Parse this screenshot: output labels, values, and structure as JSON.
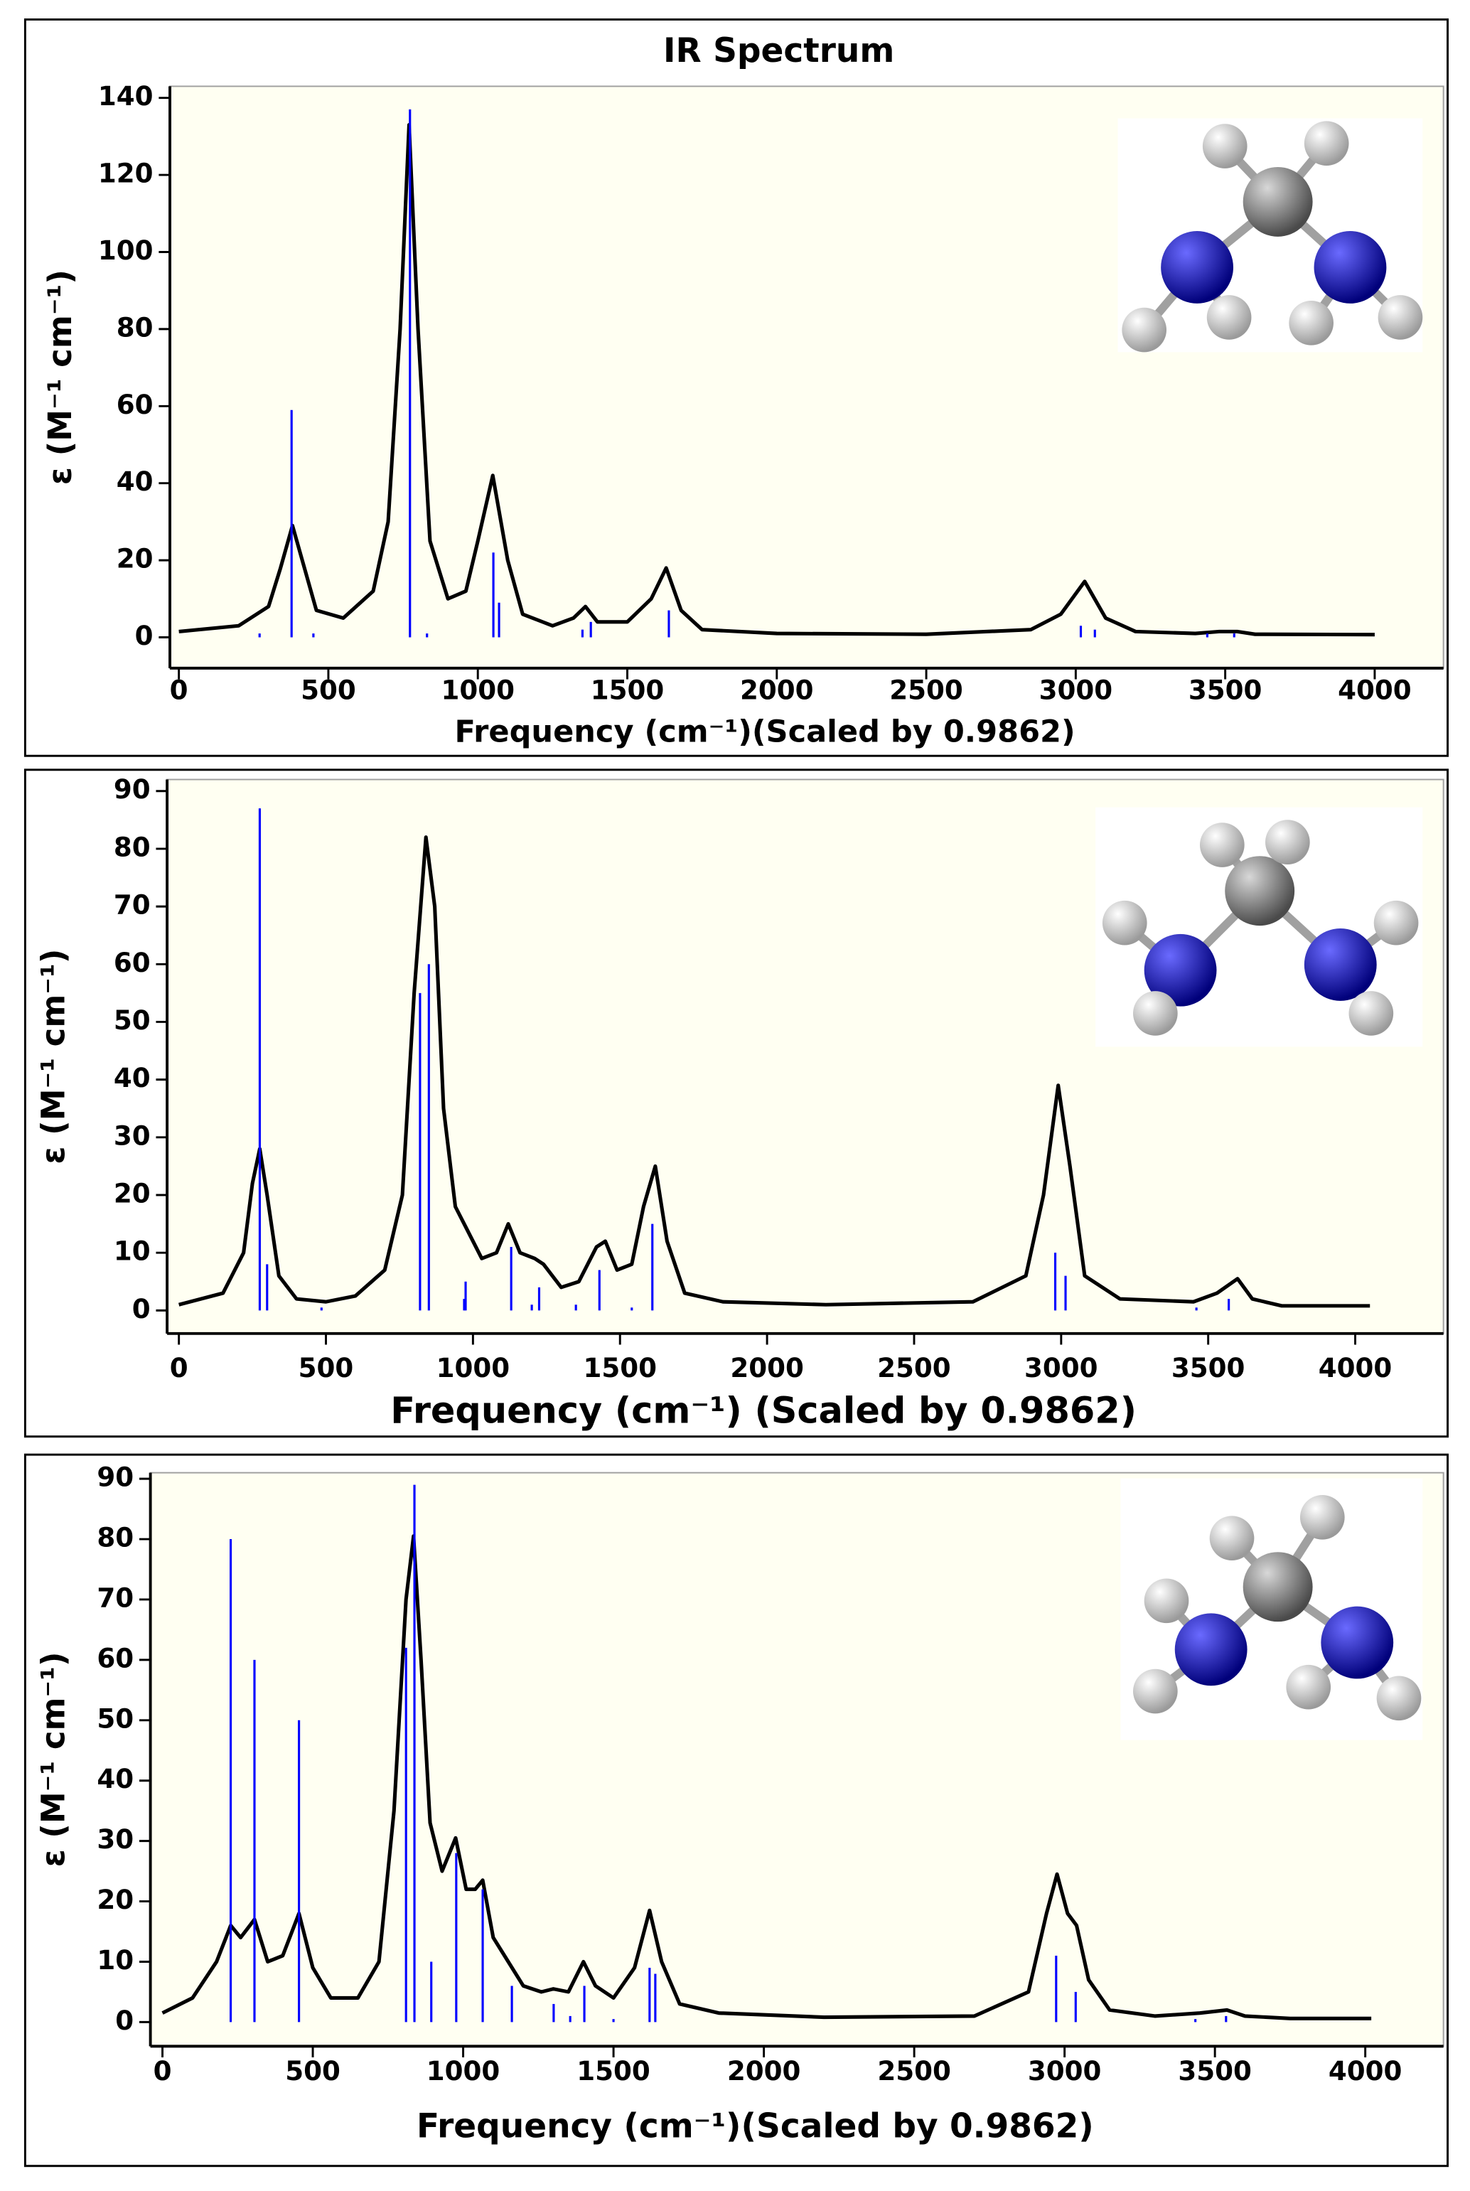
{
  "chart_data": [
    {
      "type": "line",
      "title": "IR Spectrum",
      "x_label": "Frequency (cm⁻¹)(Scaled by 0.9862)",
      "y_label": "ε (M⁻¹ cm⁻¹)",
      "xlim": [
        -30,
        4230
      ],
      "ylim": [
        -8,
        143
      ],
      "xticks": [
        0,
        500,
        1000,
        1500,
        2000,
        2500,
        3000,
        3500,
        4000
      ],
      "yticks": [
        0,
        20,
        40,
        60,
        80,
        100,
        120,
        140
      ],
      "series": [
        {
          "type": "line",
          "color": "#000000",
          "x": [
            0,
            200,
            300,
            340,
            380,
            420,
            460,
            550,
            650,
            700,
            740,
            770,
            800,
            840,
            900,
            960,
            1000,
            1050,
            1100,
            1150,
            1250,
            1320,
            1360,
            1400,
            1500,
            1580,
            1630,
            1680,
            1750,
            2000,
            2500,
            2850,
            2950,
            3030,
            3100,
            3200,
            3400,
            3480,
            3540,
            3600,
            4000
          ],
          "values": [
            1.5,
            3,
            8,
            18,
            29,
            18,
            7,
            5,
            12,
            30,
            80,
            133,
            80,
            25,
            10,
            12,
            25,
            42,
            20,
            6,
            3,
            5,
            8,
            4,
            4,
            10,
            18,
            7,
            2,
            1,
            0.8,
            2,
            6,
            14.5,
            5,
            1.5,
            1,
            1.5,
            1.5,
            0.8,
            0.7
          ]
        },
        {
          "type": "stick",
          "color": "#0000ff",
          "x": [
            270,
            377,
            450,
            773,
            830,
            1052,
            1071,
            1350,
            1378,
            1639,
            3017,
            3064,
            3440,
            3530
          ],
          "values": [
            1,
            59,
            1,
            137,
            1,
            22,
            9,
            2,
            4,
            7,
            3,
            2,
            1,
            1
          ]
        }
      ]
    },
    {
      "type": "line",
      "x_label": "Frequency (cm⁻¹) (Scaled by 0.9862)",
      "y_label": "ε (M⁻¹ cm⁻¹)",
      "xlim": [
        -40,
        4300
      ],
      "ylim": [
        -4,
        92
      ],
      "xticks": [
        0,
        500,
        1000,
        1500,
        2000,
        2500,
        3000,
        3500,
        4000
      ],
      "yticks": [
        0,
        10,
        20,
        30,
        40,
        50,
        60,
        70,
        80,
        90
      ],
      "series": [
        {
          "type": "line",
          "color": "#000000",
          "x": [
            0,
            150,
            220,
            250,
            275,
            300,
            340,
            400,
            500,
            600,
            700,
            760,
            800,
            840,
            870,
            900,
            940,
            980,
            1030,
            1080,
            1120,
            1160,
            1210,
            1240,
            1300,
            1360,
            1420,
            1450,
            1490,
            1540,
            1580,
            1620,
            1660,
            1720,
            1850,
            2200,
            2700,
            2880,
            2940,
            2990,
            3030,
            3080,
            3200,
            3450,
            3530,
            3600,
            3650,
            3750,
            4050
          ],
          "values": [
            1,
            3,
            10,
            22,
            28,
            20,
            6,
            2,
            1.5,
            2.5,
            7,
            20,
            55,
            82,
            70,
            35,
            18,
            14,
            9,
            10,
            15,
            10,
            9,
            8,
            4,
            5,
            11,
            12,
            7,
            8,
            18,
            25,
            12,
            3,
            1.5,
            1,
            1.5,
            6,
            20,
            39,
            25,
            6,
            2,
            1.5,
            3,
            5.5,
            2,
            0.8,
            0.8
          ]
        },
        {
          "type": "stick",
          "color": "#0000ff",
          "x": [
            275,
            300,
            485,
            820,
            850,
            970,
            975,
            1130,
            1200,
            1225,
            1350,
            1430,
            1540,
            1610,
            2980,
            3015,
            3460,
            3570
          ],
          "values": [
            87,
            8,
            0.5,
            55,
            60,
            2,
            5,
            11,
            1,
            4,
            1,
            7,
            0.5,
            15,
            10,
            6,
            0.5,
            2
          ]
        }
      ]
    },
    {
      "type": "line",
      "x_label": "Frequency (cm⁻¹)(Scaled by 0.9862)",
      "y_label": "ε (M⁻¹ cm⁻¹)",
      "xlim": [
        -40,
        4260
      ],
      "ylim": [
        -4,
        91
      ],
      "xticks": [
        0,
        500,
        1000,
        1500,
        2000,
        2500,
        3000,
        3500,
        4000
      ],
      "yticks": [
        0,
        10,
        20,
        30,
        40,
        50,
        60,
        70,
        80,
        90
      ],
      "series": [
        {
          "type": "line",
          "color": "#000000",
          "x": [
            0,
            100,
            180,
            227,
            260,
            306,
            350,
            400,
            454,
            500,
            560,
            650,
            720,
            770,
            810,
            835,
            860,
            890,
            930,
            975,
            1010,
            1040,
            1065,
            1100,
            1150,
            1200,
            1260,
            1300,
            1350,
            1400,
            1440,
            1500,
            1570,
            1620,
            1660,
            1720,
            1850,
            2200,
            2700,
            2880,
            2940,
            2975,
            3010,
            3040,
            3080,
            3150,
            3300,
            3450,
            3540,
            3600,
            3750,
            4020
          ],
          "values": [
            1.5,
            4,
            10,
            16,
            14,
            17,
            10,
            11,
            18,
            9,
            4,
            4,
            10,
            35,
            70,
            80.5,
            60,
            33,
            25,
            30.5,
            22,
            22,
            23.5,
            14,
            10,
            6,
            5,
            5.5,
            5,
            10,
            6,
            4,
            9,
            18.5,
            10,
            3,
            1.5,
            0.8,
            1,
            5,
            18,
            24.5,
            18,
            16,
            7,
            2,
            1,
            1.5,
            2,
            1,
            0.6,
            0.6
          ]
        },
        {
          "type": "stick",
          "color": "#0000ff",
          "x": [
            227,
            306,
            454,
            810,
            838,
            894,
            977,
            1065,
            1162,
            1301,
            1356,
            1403,
            1500,
            1620,
            1639,
            2972,
            3037,
            3435,
            3537
          ],
          "values": [
            80,
            60,
            50,
            62,
            89,
            10,
            28,
            22,
            6,
            3,
            1,
            6,
            0.5,
            9,
            8,
            11,
            5,
            0.5,
            1
          ]
        }
      ]
    }
  ]
}
